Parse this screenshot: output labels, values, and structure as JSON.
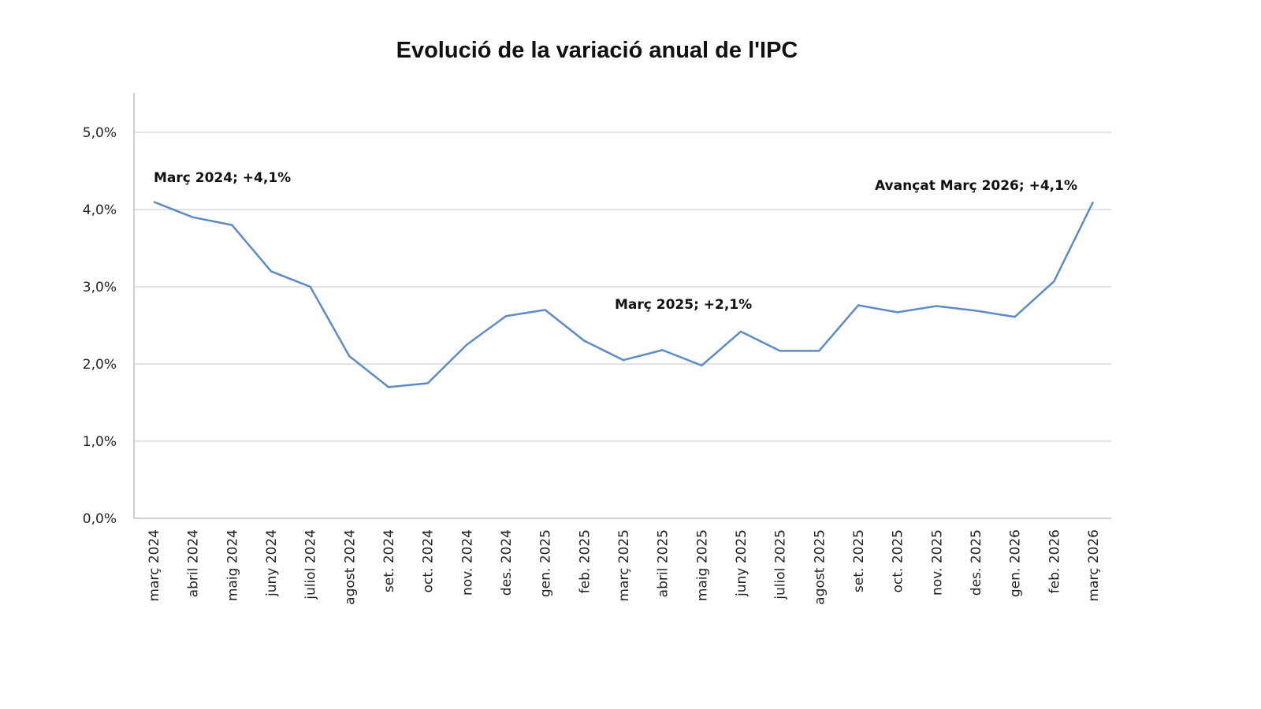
{
  "chart_data": {
    "type": "line",
    "title": "Evolució de la variació anual de l'IPC",
    "xlabel": "",
    "ylabel": "",
    "categories": [
      "març 2024",
      "abril 2024",
      "maig 2024",
      "juny 2024",
      "juliol 2024",
      "agost 2024",
      "set. 2024",
      "oct. 2024",
      "nov. 2024",
      "des. 2024",
      "gen. 2025",
      "feb. 2025",
      "març 2025",
      "abril 2025",
      "maig 2025",
      "juny 2025",
      "juliol 2025",
      "agost 2025",
      "set. 2025",
      "oct. 2025",
      "nov. 2025",
      "des. 2025",
      "gen. 2026",
      "feb. 2026",
      "març 2026"
    ],
    "series": [
      {
        "values": [
          4.1,
          3.9,
          3.8,
          3.2,
          3.0,
          2.1,
          1.7,
          1.75,
          2.25,
          2.62,
          2.7,
          2.3,
          2.05,
          2.18,
          1.98,
          2.42,
          2.17,
          2.17,
          2.76,
          2.67,
          2.75,
          2.69,
          2.61,
          3.07,
          4.1
        ],
        "color": "#5b8bc9"
      }
    ],
    "ylim": [
      0,
      5
    ],
    "yticks": [
      "0,0%",
      "1,0%",
      "2,0%",
      "3,0%",
      "4,0%",
      "5,0%"
    ],
    "grid": true,
    "legend": "none",
    "annotations": [
      {
        "text": "Març 2024; +4,1%",
        "index": 0
      },
      {
        "text": "Març 2025;  +2,1%",
        "index": 12
      },
      {
        "text": "Avançat Març 2026; +4,1%",
        "index": 24
      }
    ]
  }
}
